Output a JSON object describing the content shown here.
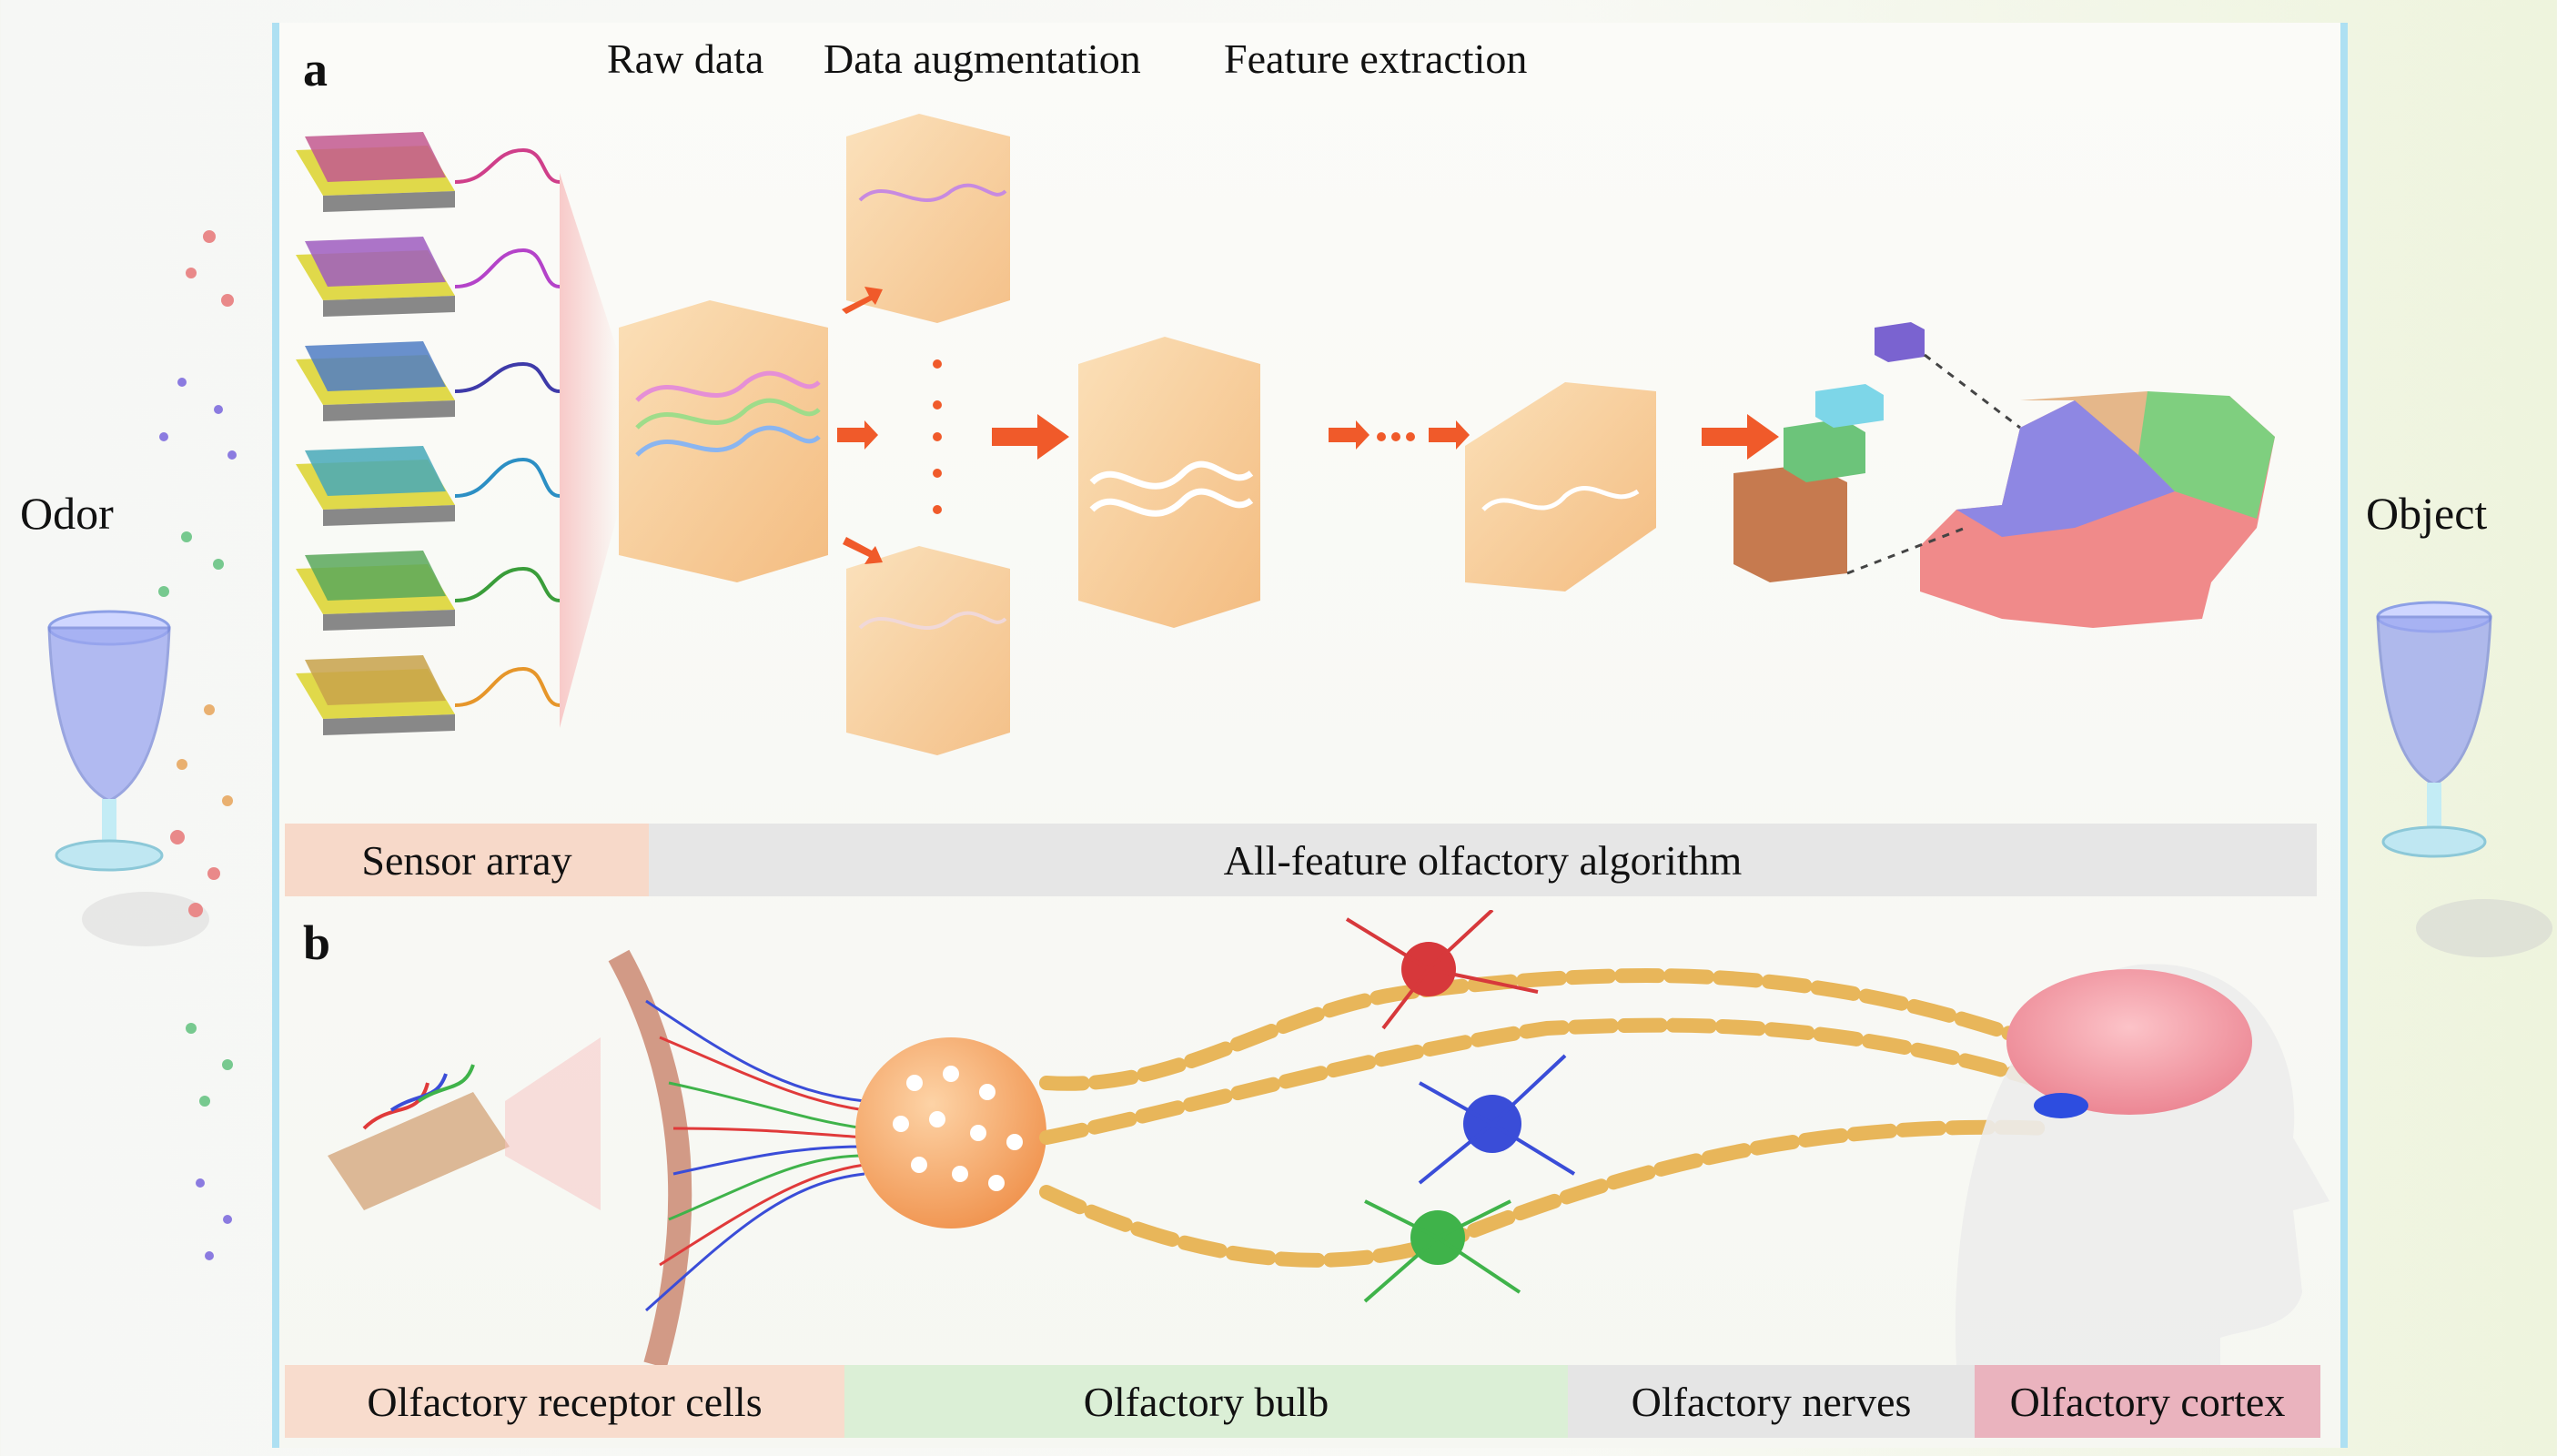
{
  "side": {
    "left_label": "Odor",
    "right_label": "Object"
  },
  "panel_a": {
    "letter": "a",
    "headers": [
      "Raw data",
      "Data augmentation",
      "Feature extraction"
    ],
    "bars": [
      {
        "label": "Sensor array",
        "color": "#f7d9c9"
      },
      {
        "label": "All-feature olfactory algorithm",
        "color": "#e6e6e6"
      }
    ]
  },
  "panel_b": {
    "letter": "b",
    "bars": [
      {
        "label": "Olfactory receptor cells",
        "color": "#f8dccd"
      },
      {
        "label": "Olfactory bulb",
        "color": "#dbefd6"
      },
      {
        "label": "Olfactory nerves",
        "color": "#e5e5e5"
      },
      {
        "label": "Olfactory cortex",
        "color": "#eab3be"
      }
    ]
  },
  "colors": {
    "frame": "#aee0f2",
    "arrow": "#f05a2a",
    "cube_orange": "#f5b56a",
    "sensor_lines": [
      "#cf3f8a",
      "#b443c9",
      "#3e3aa9",
      "#2c8fc4",
      "#3a9d3a",
      "#e6962a"
    ]
  }
}
